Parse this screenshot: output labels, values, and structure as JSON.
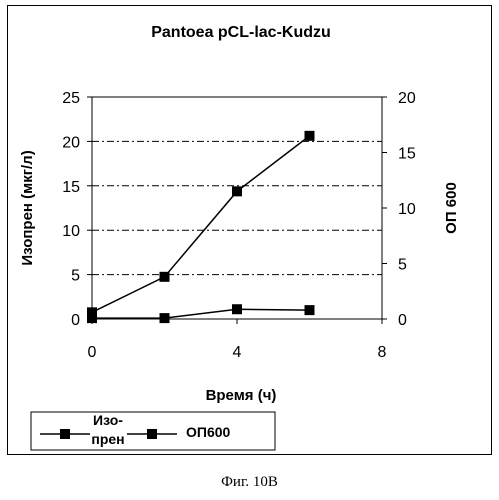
{
  "figure_caption": "Фиг. 10B",
  "chart_data": {
    "type": "line",
    "title": "Pantoea pCL-lac-Kudzu",
    "xlabel": "Время (ч)",
    "ylabel_left": "Изопрен (мкг/л)",
    "ylabel_right": "ОП 600",
    "xlim": [
      0,
      8
    ],
    "ylim_left": [
      0,
      25
    ],
    "ylim_right": [
      0,
      20
    ],
    "x_ticks": [
      "0",
      "4",
      "8"
    ],
    "y_ticks_left": [
      "0",
      "5",
      "10",
      "15",
      "20",
      "25"
    ],
    "y_ticks_right": [
      "0",
      "5",
      "10",
      "15",
      "20"
    ],
    "grid": true,
    "legend_position": "bottom-left",
    "series": [
      {
        "name": "Изо-\nпрен",
        "axis": "left",
        "x": [
          0,
          2,
          4,
          6
        ],
        "values": [
          0.1,
          0.1,
          1.1,
          1.0
        ],
        "color": "#000000",
        "marker": "square"
      },
      {
        "name": "ОП600",
        "axis": "right",
        "x": [
          0,
          2,
          4,
          6
        ],
        "values": [
          0.6,
          3.8,
          11.5,
          16.5
        ],
        "color": "#000000",
        "marker": "square"
      }
    ]
  }
}
